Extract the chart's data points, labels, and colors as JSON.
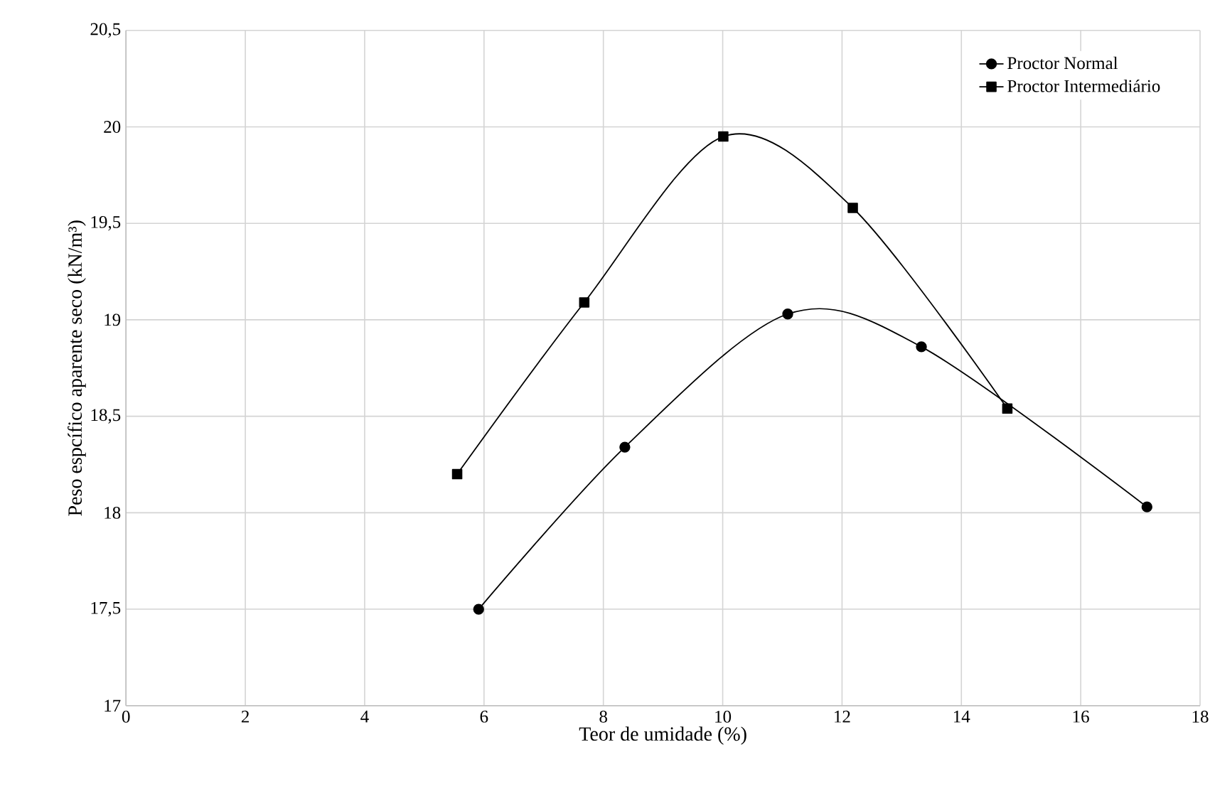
{
  "chart_data": {
    "type": "line",
    "xlabel": "Teor de umidade (%)",
    "ylabel": "Peso espcífico aparente seco (kN/m³)",
    "xlim": [
      0,
      18
    ],
    "xticks": [
      0,
      2,
      4,
      6,
      8,
      10,
      12,
      14,
      16,
      18
    ],
    "ylim": [
      17,
      20.5
    ],
    "yticks": [
      17,
      {
        "value": 17.5,
        "label": "17,5"
      },
      18,
      {
        "value": 18.5,
        "label": "18,5"
      },
      19,
      {
        "value": 19.5,
        "label": "19,5"
      },
      20,
      {
        "value": 20.5,
        "label": "20,5"
      }
    ],
    "grid": true,
    "legend": "top right",
    "line_style": "solid",
    "series": [
      {
        "name": "Proctor Normal",
        "color": "#000000",
        "marker": "circle",
        "x": [
          5.91,
          8.36,
          11.09,
          13.33,
          17.11
        ],
        "values": [
          17.5,
          18.34,
          19.03,
          18.86,
          18.03
        ]
      },
      {
        "name": "Proctor Intermediário",
        "color": "#000000",
        "marker": "square",
        "x": [
          5.55,
          7.68,
          10.01,
          12.18,
          14.77
        ],
        "values": [
          18.2,
          19.09,
          19.95,
          19.58,
          18.54
        ]
      }
    ]
  }
}
